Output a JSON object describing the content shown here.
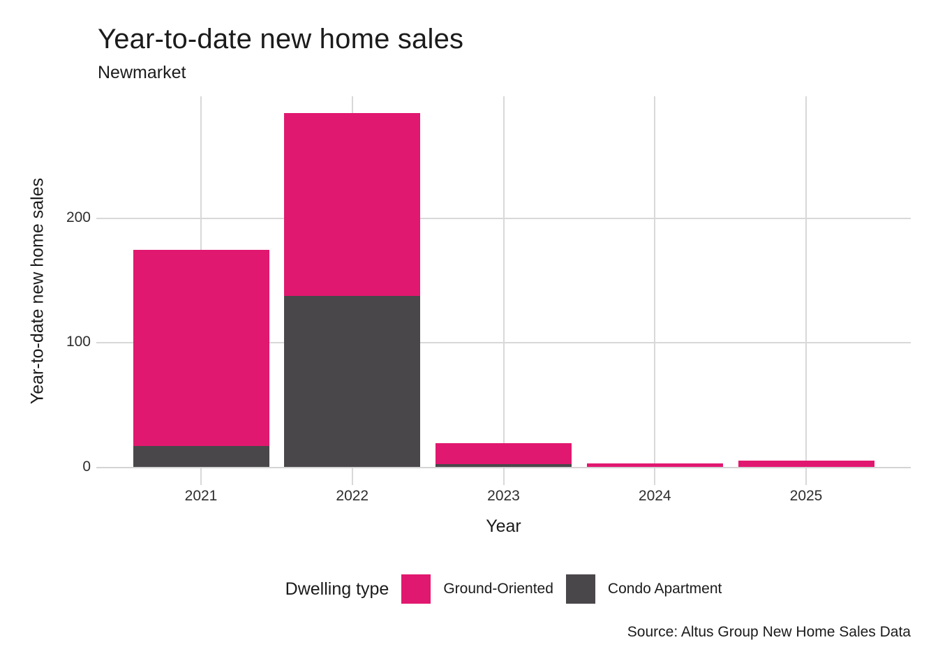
{
  "title": "Year-to-date new home sales",
  "subtitle": "Newmarket",
  "source": "Source: Altus Group New Home Sales Data",
  "axes": {
    "x_label": "Year",
    "y_label": "Year-to-date new home sales",
    "y_ticks": [
      0,
      100,
      200
    ],
    "x_ticks": [
      "2021",
      "2022",
      "2023",
      "2024",
      "2025"
    ]
  },
  "legend": {
    "title": "Dwelling type",
    "items": [
      {
        "label": "Ground-Oriented",
        "color": "#E1186F"
      },
      {
        "label": "Condo Apartment",
        "color": "#4A474A"
      }
    ]
  },
  "colors": {
    "ground_oriented": "#E1186F",
    "condo_apartment": "#4A474A",
    "gridline": "#D8D8D8",
    "text": "#1B1B1B"
  },
  "chart_data": {
    "type": "bar",
    "stacked": true,
    "title": "Year-to-date new home sales",
    "subtitle": "Newmarket",
    "xlabel": "Year",
    "ylabel": "Year-to-date new home sales",
    "categories": [
      "2021",
      "2022",
      "2023",
      "2024",
      "2025"
    ],
    "series": [
      {
        "name": "Ground-Oriented",
        "color": "#E1186F",
        "values": [
          157,
          147,
          17,
          3,
          5
        ]
      },
      {
        "name": "Condo Apartment",
        "color": "#4A474A",
        "values": [
          17,
          137,
          2,
          0,
          0
        ]
      }
    ],
    "totals": [
      174,
      284,
      19,
      3,
      5
    ],
    "ylim": [
      0,
      298
    ],
    "y_ticks": [
      0,
      100,
      200
    ],
    "grid": true,
    "legend_position": "bottom",
    "caption": "Source: Altus Group New Home Sales Data"
  }
}
